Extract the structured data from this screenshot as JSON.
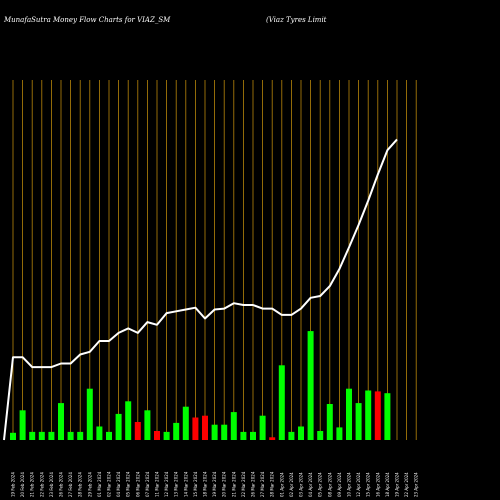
{
  "header": {
    "left_title": "MunafaSutra  Money Flow  Charts for VIAZ_SM",
    "right_title": "(Viaz Tyres Limit"
  },
  "colors": {
    "background": "#000000",
    "grid": "#b8860b",
    "up_bar": "#00ff00",
    "down_bar": "#ff0000",
    "line": "#ffffff",
    "text": "#ffffff"
  },
  "chart_data": {
    "type": "bar",
    "grid": "vertical",
    "categories": [
      "19 Feb 2024",
      "20 Feb 2024",
      "21 Feb 2024",
      "22 Feb 2024",
      "23 Feb 2024",
      "26 Feb 2024",
      "27 Feb 2024",
      "28 Feb 2024",
      "29 Feb 2024",
      "01 Mar 2024",
      "02 Mar 2024",
      "04 Mar 2024",
      "05 Mar 2024",
      "06 Mar 2024",
      "07 Mar 2024",
      "11 Mar 2024",
      "12 Mar 2024",
      "13 Mar 2024",
      "14 Mar 2024",
      "15 Mar 2024",
      "18 Mar 2024",
      "19 Mar 2024",
      "20 Mar 2024",
      "21 Mar 2024",
      "22 Mar 2024",
      "26 Mar 2024",
      "27 Mar 2024",
      "28 Mar 2024",
      "01 Apr 2024",
      "02 Apr 2024",
      "03 Apr 2024",
      "04 Apr 2024",
      "05 Apr 2024",
      "08 Apr 2024",
      "09 Apr 2024",
      "10 Apr 2024",
      "12 Apr 2024",
      "15 Apr 2024",
      "16 Apr 2024",
      "18 Apr 2024",
      "19 Apr 2024",
      "22 Apr 2024",
      "23 Apr 2024"
    ],
    "series": [
      {
        "kind": "bar",
        "values": [
          8,
          33,
          9,
          9,
          9,
          41,
          9,
          9,
          57,
          15,
          9,
          29,
          43,
          20,
          33,
          10,
          9,
          19,
          37,
          25,
          27,
          17,
          17,
          31,
          9,
          9,
          27,
          3,
          83,
          9,
          15,
          121,
          10,
          40,
          14,
          57,
          41,
          55,
          54,
          52,
          0,
          0,
          0
        ],
        "direction": [
          "up",
          "up",
          "up",
          "up",
          "up",
          "up",
          "up",
          "up",
          "up",
          "up",
          "up",
          "up",
          "up",
          "down",
          "up",
          "down",
          "up",
          "up",
          "up",
          "down",
          "down",
          "up",
          "up",
          "up",
          "up",
          "up",
          "up",
          "down",
          "up",
          "up",
          "up",
          "up",
          "up",
          "up",
          "up",
          "up",
          "up",
          "up",
          "down",
          "up",
          "up",
          "up",
          "up"
        ]
      },
      {
        "kind": "line",
        "values": [
          92,
          92,
          81,
          81,
          81,
          85,
          85,
          95,
          98,
          110,
          110,
          119,
          124,
          119,
          131,
          128,
          141,
          143,
          145,
          147,
          135,
          145,
          146,
          152,
          150,
          150,
          146,
          146,
          139,
          139,
          146,
          158,
          160,
          171,
          190,
          214,
          239,
          266,
          295,
          322,
          334,
          0,
          0
        ]
      }
    ],
    "ylim": [
      0,
      400
    ]
  }
}
